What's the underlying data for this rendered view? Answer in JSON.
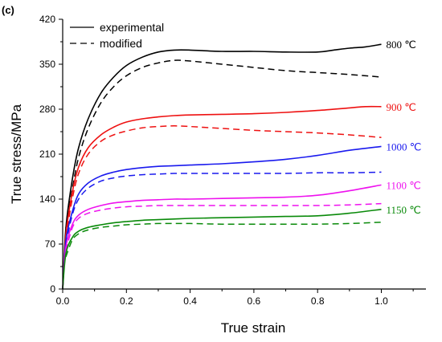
{
  "chart_data": {
    "type": "line",
    "panel_label": "(c)",
    "title": "",
    "xlabel": "True strain",
    "ylabel": "True stress/MPa",
    "xlim": [
      0.0,
      1.14
    ],
    "ylim": [
      0,
      420
    ],
    "xticks": [
      "0.0",
      "0.2",
      "0.4",
      "0.6",
      "0.8",
      "1.0"
    ],
    "yticks": [
      "0",
      "70",
      "140",
      "210",
      "280",
      "350",
      "420"
    ],
    "legend": {
      "position": "top-left",
      "entries": [
        {
          "label": "experimental",
          "style": "solid"
        },
        {
          "label": "modified",
          "style": "dashed"
        }
      ]
    },
    "grid": false,
    "series": [
      {
        "name": "800 ℃",
        "color": "#000000",
        "experimental": {
          "x": [
            0,
            0.01,
            0.03,
            0.05,
            0.08,
            0.12,
            0.16,
            0.2,
            0.25,
            0.3,
            0.35,
            0.4,
            0.5,
            0.6,
            0.7,
            0.8,
            0.85,
            0.9,
            0.95,
            1.0
          ],
          "y": [
            0,
            95,
            170,
            220,
            265,
            305,
            330,
            348,
            361,
            369,
            372,
            372,
            370,
            370,
            369,
            369,
            372,
            375,
            377,
            381
          ]
        },
        "modified": {
          "x": [
            0.01,
            0.03,
            0.05,
            0.08,
            0.12,
            0.16,
            0.2,
            0.25,
            0.3,
            0.35,
            0.4,
            0.5,
            0.6,
            0.7,
            0.8,
            0.9,
            1.0
          ],
          "y": [
            95,
            155,
            205,
            250,
            290,
            315,
            332,
            345,
            352,
            356,
            355,
            350,
            345,
            340,
            337,
            334,
            330
          ]
        }
      },
      {
        "name": "900 ℃",
        "color": "#ee1111",
        "experimental": {
          "x": [
            0,
            0.01,
            0.03,
            0.05,
            0.08,
            0.12,
            0.16,
            0.2,
            0.25,
            0.3,
            0.35,
            0.4,
            0.5,
            0.6,
            0.7,
            0.8,
            0.9,
            0.95,
            1.0
          ],
          "y": [
            0,
            85,
            150,
            190,
            220,
            240,
            252,
            260,
            265,
            268,
            270,
            271,
            272,
            273,
            275,
            278,
            282,
            284,
            284
          ]
        },
        "modified": {
          "x": [
            0.01,
            0.03,
            0.05,
            0.08,
            0.12,
            0.16,
            0.2,
            0.25,
            0.3,
            0.35,
            0.4,
            0.5,
            0.6,
            0.7,
            0.8,
            0.9,
            1.0
          ],
          "y": [
            80,
            140,
            180,
            210,
            230,
            240,
            246,
            251,
            253,
            254,
            253,
            250,
            247,
            245,
            243,
            240,
            236
          ]
        }
      },
      {
        "name": "1000 ℃",
        "color": "#1a1aee",
        "experimental": {
          "x": [
            0,
            0.01,
            0.03,
            0.05,
            0.08,
            0.12,
            0.16,
            0.2,
            0.25,
            0.3,
            0.35,
            0.4,
            0.5,
            0.6,
            0.7,
            0.8,
            0.9,
            1.0
          ],
          "y": [
            0,
            75,
            120,
            148,
            165,
            176,
            182,
            186,
            189,
            191,
            192,
            193,
            195,
            198,
            202,
            208,
            216,
            222
          ]
        },
        "modified": {
          "x": [
            0.01,
            0.03,
            0.05,
            0.08,
            0.12,
            0.16,
            0.2,
            0.25,
            0.3,
            0.35,
            0.4,
            0.5,
            0.6,
            0.7,
            0.8,
            0.9,
            1.0
          ],
          "y": [
            70,
            115,
            140,
            157,
            168,
            173,
            176,
            178,
            179,
            180,
            180,
            180,
            180,
            180,
            181,
            181,
            182
          ]
        }
      },
      {
        "name": "1100 ℃",
        "color": "#ee11ee",
        "experimental": {
          "x": [
            0,
            0.01,
            0.03,
            0.05,
            0.08,
            0.12,
            0.16,
            0.2,
            0.25,
            0.3,
            0.35,
            0.4,
            0.5,
            0.6,
            0.7,
            0.8,
            0.9,
            1.0
          ],
          "y": [
            0,
            65,
            100,
            115,
            124,
            130,
            134,
            136,
            138,
            139,
            140,
            140,
            141,
            142,
            143,
            146,
            153,
            162
          ]
        },
        "modified": {
          "x": [
            0.01,
            0.03,
            0.05,
            0.08,
            0.12,
            0.16,
            0.2,
            0.25,
            0.3,
            0.35,
            0.4,
            0.5,
            0.6,
            0.7,
            0.8,
            0.9,
            1.0
          ],
          "y": [
            60,
            95,
            110,
            118,
            123,
            126,
            128,
            129,
            130,
            130,
            130,
            130,
            130,
            130,
            130,
            131,
            133
          ]
        }
      },
      {
        "name": "1150 ℃",
        "color": "#0a8a0a",
        "experimental": {
          "x": [
            0,
            0.01,
            0.03,
            0.05,
            0.08,
            0.12,
            0.16,
            0.2,
            0.25,
            0.3,
            0.35,
            0.4,
            0.5,
            0.6,
            0.7,
            0.8,
            0.9,
            1.0
          ],
          "y": [
            0,
            55,
            80,
            90,
            96,
            100,
            103,
            105,
            107,
            108,
            109,
            110,
            111,
            112,
            113,
            114,
            118,
            124
          ]
        },
        "modified": {
          "x": [
            0.01,
            0.03,
            0.05,
            0.08,
            0.12,
            0.16,
            0.2,
            0.25,
            0.3,
            0.35,
            0.4,
            0.5,
            0.6,
            0.7,
            0.8,
            0.9,
            1.0
          ],
          "y": [
            50,
            76,
            86,
            92,
            96,
            98,
            100,
            101,
            102,
            102,
            102,
            101,
            101,
            101,
            101,
            102,
            104
          ]
        }
      }
    ]
  }
}
